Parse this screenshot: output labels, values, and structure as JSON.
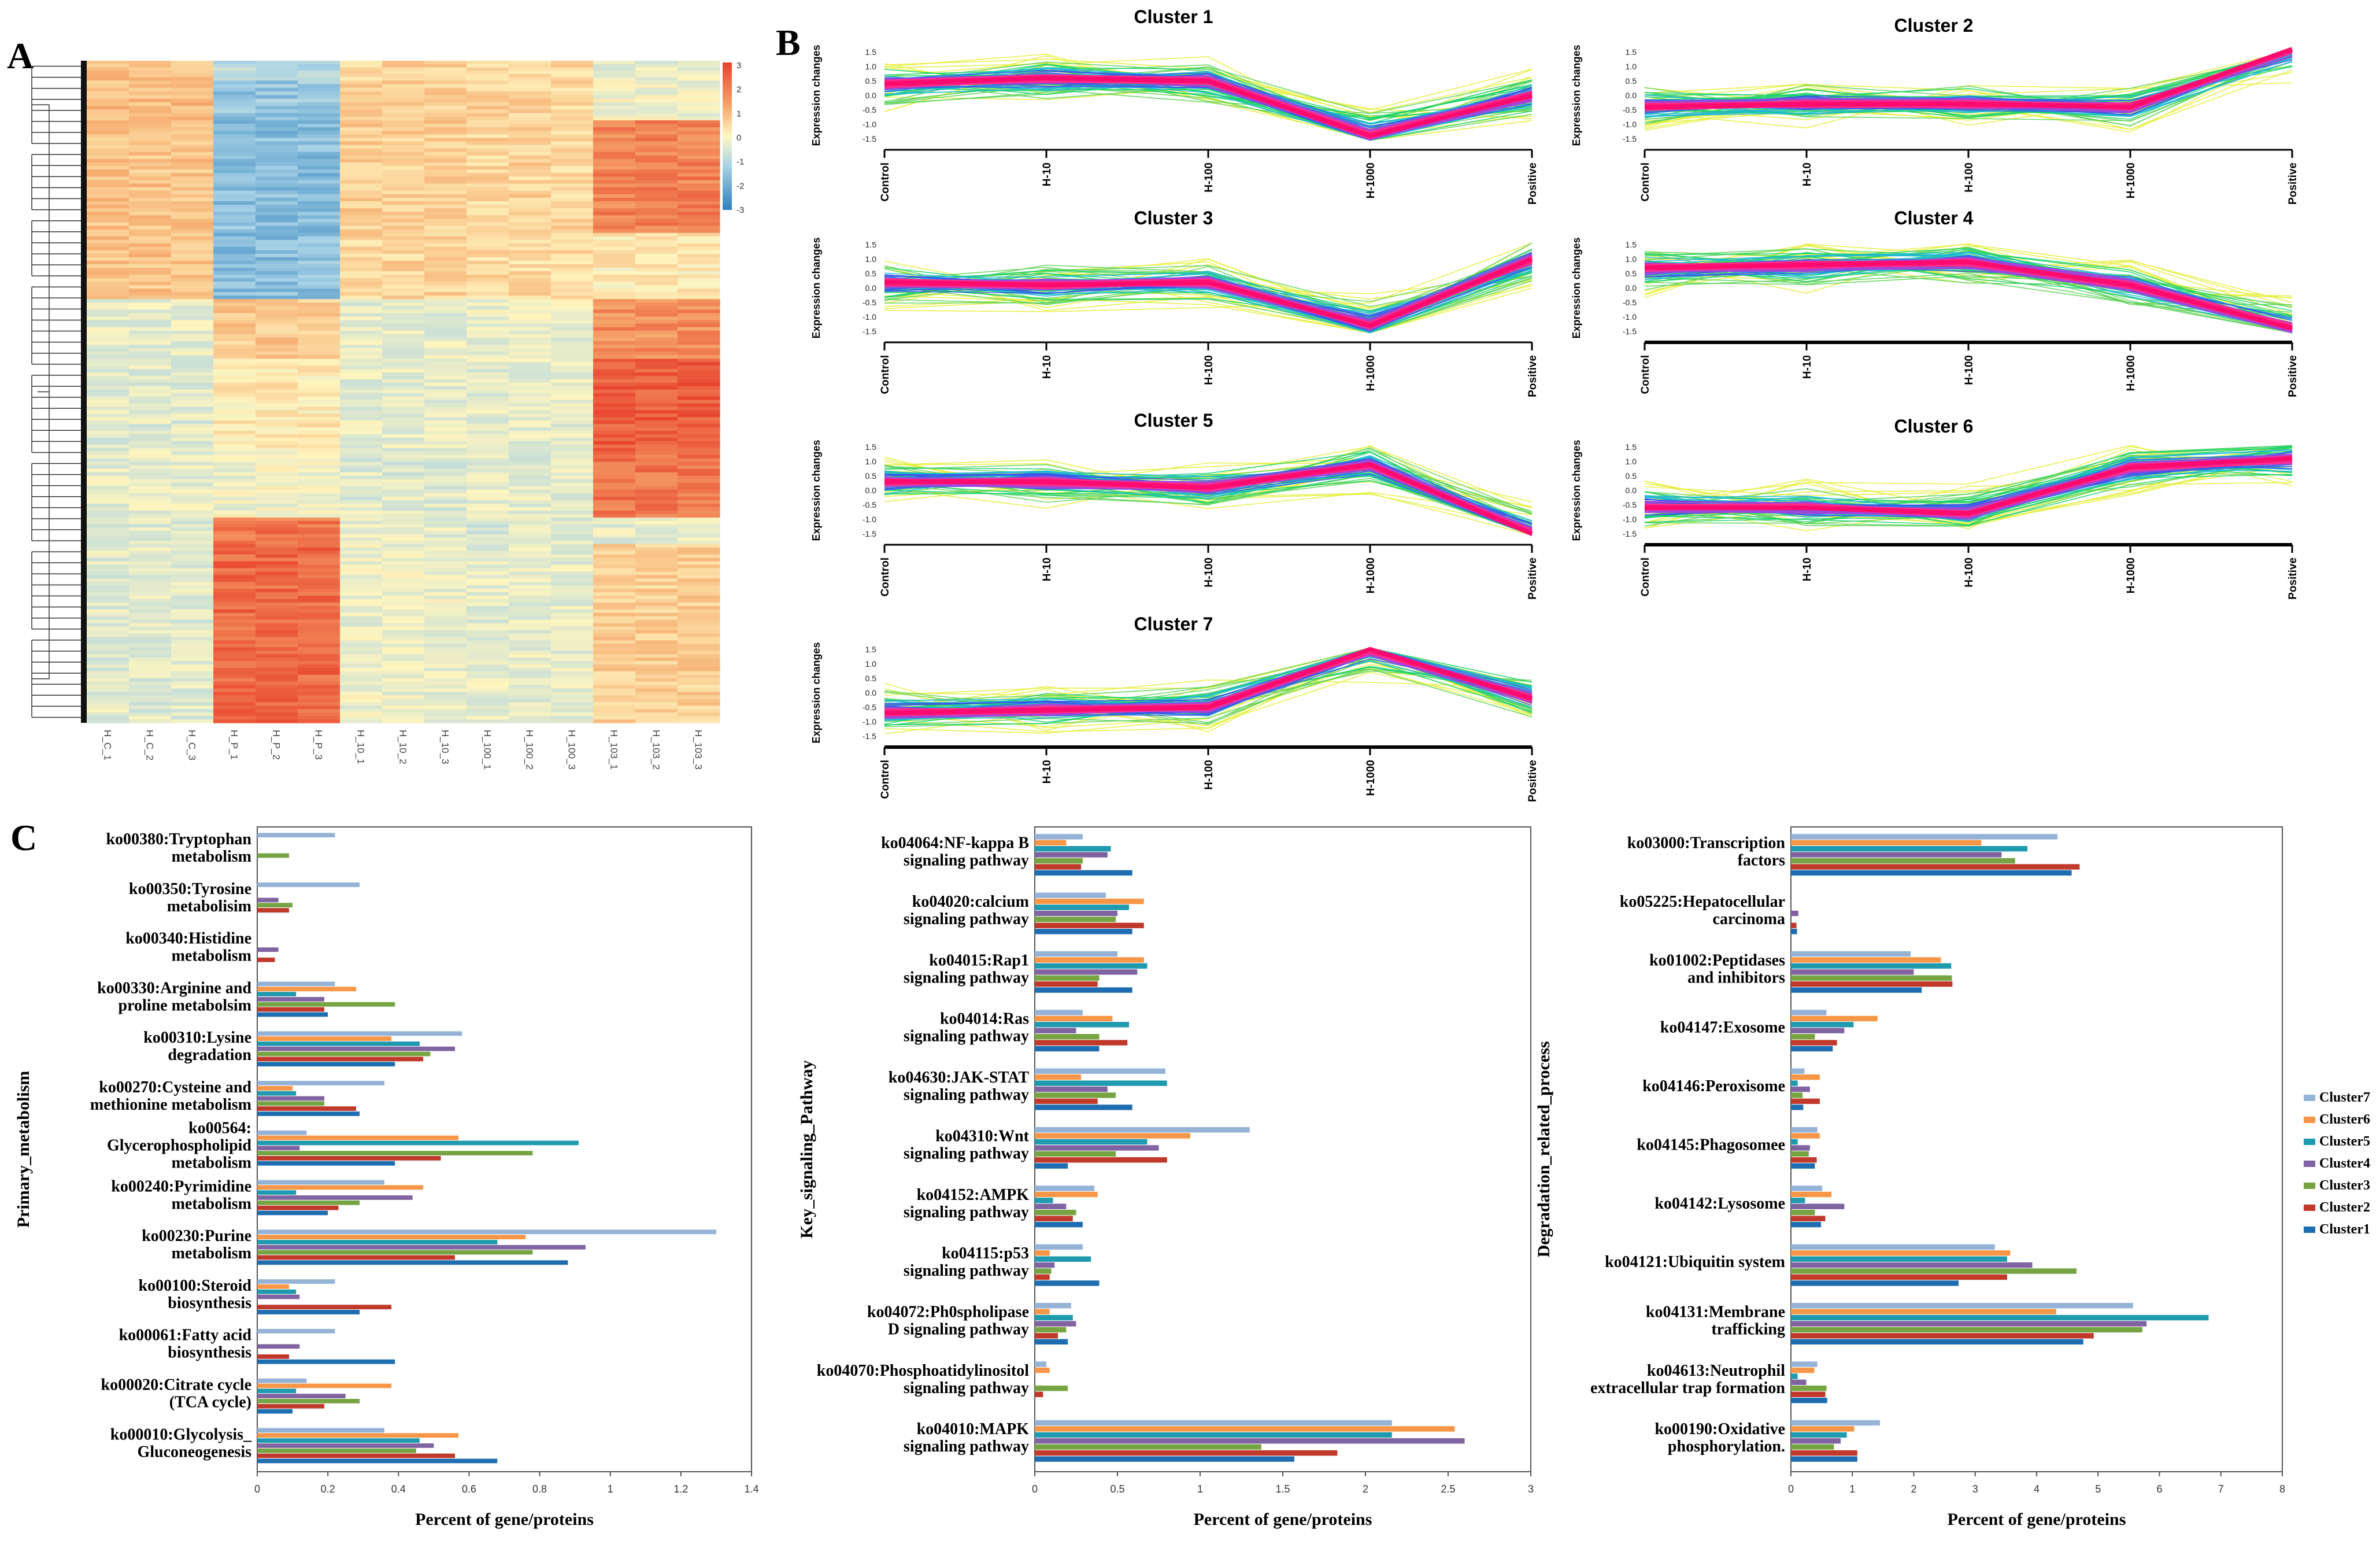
{
  "panels": {
    "a": "A",
    "b": "B",
    "c": "C"
  },
  "heatmap": {
    "samples": [
      "H_C_1",
      "H_C_2",
      "H_C_3",
      "H_P_1",
      "H_P_2",
      "H_P_3",
      "H_10_1",
      "H_10_2",
      "H_10_3",
      "H_100_1",
      "H_100_2",
      "H_100_3",
      "H_103_1",
      "H_103_2",
      "H_103_3"
    ],
    "scale_ticks": [
      "3",
      "2",
      "1",
      "0",
      "-1",
      "-2",
      "-3"
    ],
    "colors": {
      "high": "#f0703f",
      "mid": "#fff2b8",
      "low": "#3b8cc4"
    }
  },
  "chart_data": [
    {
      "type": "line",
      "title": "Cluster 1",
      "ylabel": "Expression changes",
      "x": [
        "Control",
        "H-10",
        "H-100",
        "H-1000",
        "Positive"
      ],
      "yticks": [
        "1.5",
        "1.0",
        "0.5",
        "0.0",
        "-0.5",
        "-1.0",
        "-1.5"
      ],
      "ylim": [
        -1.6,
        1.6
      ],
      "series": [
        {
          "values": [
            0.4,
            0.6,
            0.5,
            -1.4,
            0.0
          ]
        }
      ]
    },
    {
      "type": "line",
      "title": "Cluster 2",
      "ylabel": "Expression changes",
      "x": [
        "Control",
        "H-10",
        "H-100",
        "H-1000",
        "Positive"
      ],
      "yticks": [
        "1.5",
        "1.0",
        "0.5",
        "0.0",
        "-0.5",
        "-1.0",
        "-1.5"
      ],
      "ylim": [
        -1.6,
        1.6
      ],
      "series": [
        {
          "values": [
            -0.4,
            -0.3,
            -0.3,
            -0.4,
            1.6
          ]
        }
      ]
    },
    {
      "type": "line",
      "title": "Cluster 3",
      "ylabel": "Expression changes",
      "x": [
        "Control",
        "H-10",
        "H-100",
        "H-1000",
        "Positive"
      ],
      "yticks": [
        "1.5",
        "1.0",
        "0.5",
        "0.0",
        "-0.5",
        "-1.0",
        "-1.5"
      ],
      "ylim": [
        -1.6,
        1.6
      ],
      "series": [
        {
          "values": [
            0.2,
            0.1,
            0.2,
            -1.3,
            1.0
          ]
        }
      ]
    },
    {
      "type": "line",
      "title": "Cluster 4",
      "ylabel": "Expression changes",
      "x": [
        "Control",
        "H-10",
        "H-100",
        "H-1000",
        "Positive"
      ],
      "yticks": [
        "1.5",
        "1.0",
        "0.5",
        "0.0",
        "-0.5",
        "-1.0",
        "-1.5"
      ],
      "ylim": [
        -1.6,
        1.6
      ],
      "series": [
        {
          "values": [
            0.7,
            0.8,
            0.9,
            0.1,
            -1.4
          ]
        }
      ]
    },
    {
      "type": "line",
      "title": "Cluster 5",
      "ylabel": "Expression changes",
      "x": [
        "Control",
        "H-10",
        "H-100",
        "H-1000",
        "Positive"
      ],
      "yticks": [
        "1.5",
        "1.0",
        "0.5",
        "0.0",
        "-0.5",
        "-1.0",
        "-1.5"
      ],
      "ylim": [
        -1.6,
        1.6
      ],
      "series": [
        {
          "values": [
            0.3,
            0.3,
            0.1,
            0.9,
            -1.5
          ]
        }
      ]
    },
    {
      "type": "line",
      "title": "Cluster 6",
      "ylabel": "Expression changes",
      "x": [
        "Control",
        "H-10",
        "H-100",
        "H-1000",
        "Positive"
      ],
      "yticks": [
        "1.5",
        "1.0",
        "0.5",
        "0.0",
        "-0.5",
        "-1.0",
        "-1.5"
      ],
      "ylim": [
        -1.6,
        1.6
      ],
      "series": [
        {
          "values": [
            -0.6,
            -0.6,
            -0.8,
            0.8,
            1.1
          ]
        }
      ]
    },
    {
      "type": "line",
      "title": "Cluster 7",
      "ylabel": "Expression changes",
      "x": [
        "Control",
        "H-10",
        "H-100",
        "H-1000",
        "Positive"
      ],
      "yticks": [
        "1.5",
        "1.0",
        "0.5",
        "0.0",
        "-0.5",
        "-1.0",
        "-1.5"
      ],
      "ylim": [
        -1.6,
        1.6
      ],
      "series": [
        {
          "values": [
            -0.7,
            -0.6,
            -0.5,
            1.5,
            -0.2
          ]
        }
      ]
    },
    {
      "type": "bar",
      "orientation": "horizontal",
      "ylabel": "Primary_metabolism",
      "xlabel": "Percent of gene/proteins",
      "xlim": [
        0,
        1.4
      ],
      "xticks": [
        "0",
        "0.2",
        "0.4",
        "0.6",
        "0.8",
        "1",
        "1.2",
        "1.4"
      ],
      "categories": [
        [
          "ko00380:Tryptophan",
          "metabolism"
        ],
        [
          "ko00350:Tyrosine",
          "metabolisim"
        ],
        [
          "ko00340:Histidine",
          "metabolism"
        ],
        [
          "ko00330:Arginine and",
          "proline metabolsim"
        ],
        [
          "ko00310:Lysine",
          "degradation"
        ],
        [
          "ko00270:Cysteine and",
          "methionine metabolism"
        ],
        [
          "ko00564:",
          "Glycerophospholipid",
          "metabolism"
        ],
        [
          "ko00240:Pyrimidine",
          "metabolism"
        ],
        [
          "ko00230:Purine",
          "metabolism"
        ],
        [
          "ko00100:Steroid",
          "biosynthesis"
        ],
        [
          "ko00061:Fatty acid",
          "biosynthesis"
        ],
        [
          "ko00020:Citrate cycle",
          "(TCA cycle)"
        ],
        [
          "ko00010:Glycolysis_",
          "Gluconeogenesis"
        ]
      ],
      "series": [
        {
          "name": "Cluster7",
          "values": [
            0.22,
            0.29,
            0.0,
            0.22,
            0.58,
            0.36,
            0.14,
            0.36,
            1.3,
            0.22,
            0.22,
            0.14,
            0.36
          ]
        },
        {
          "name": "Cluster6",
          "values": [
            0.0,
            0.0,
            0.0,
            0.28,
            0.38,
            0.1,
            0.57,
            0.47,
            0.76,
            0.09,
            0.0,
            0.38,
            0.57
          ]
        },
        {
          "name": "Cluster5",
          "values": [
            0.0,
            0.0,
            0.0,
            0.11,
            0.46,
            0.11,
            0.91,
            0.11,
            0.68,
            0.11,
            0.0,
            0.11,
            0.46
          ]
        },
        {
          "name": "Cluster4",
          "values": [
            0.0,
            0.06,
            0.06,
            0.19,
            0.56,
            0.19,
            0.12,
            0.44,
            0.93,
            0.12,
            0.12,
            0.25,
            0.5
          ]
        },
        {
          "name": "Cluster3",
          "values": [
            0.09,
            0.1,
            0.0,
            0.39,
            0.49,
            0.19,
            0.78,
            0.29,
            0.78,
            0.0,
            0.0,
            0.29,
            0.45
          ]
        },
        {
          "name": "Cluster2",
          "values": [
            0.0,
            0.09,
            0.05,
            0.19,
            0.47,
            0.28,
            0.52,
            0.23,
            0.56,
            0.38,
            0.09,
            0.19,
            0.56
          ]
        },
        {
          "name": "Cluster1",
          "values": [
            0.0,
            0.0,
            0.0,
            0.2,
            0.39,
            0.29,
            0.39,
            0.2,
            0.88,
            0.29,
            0.39,
            0.1,
            0.68
          ]
        }
      ]
    },
    {
      "type": "bar",
      "orientation": "horizontal",
      "ylabel": "Key_signaling_Pathway",
      "xlabel": "Percent of gene/proteins",
      "xlim": [
        0,
        3
      ],
      "xticks": [
        "0",
        "0.5",
        "1",
        "1.5",
        "2",
        "2.5",
        "3"
      ],
      "categories": [
        [
          "ko04064:NF-kappa B",
          "signaling pathway"
        ],
        [
          "ko04020:calcium",
          "signaling pathway"
        ],
        [
          "ko04015:Rap1",
          "signaling pathway"
        ],
        [
          "ko04014:Ras",
          "signaling pathway"
        ],
        [
          "ko04630:JAK-STAT",
          "signaling pathway"
        ],
        [
          "ko04310:Wnt",
          "signaling pathway"
        ],
        [
          "ko04152:AMPK",
          "signaling pathway"
        ],
        [
          "ko04115:p53",
          "signaling pathway"
        ],
        [
          "ko04072:Ph0spholipase",
          "D signaling pathway"
        ],
        [
          "ko04070:Phosphoatidylinositol",
          "signaling pathway"
        ],
        [
          "ko04010:MAPK",
          "signaling pathway"
        ]
      ],
      "series": [
        {
          "name": "Cluster7",
          "values": [
            0.29,
            0.43,
            0.5,
            0.29,
            0.79,
            1.3,
            0.36,
            0.29,
            0.22,
            0.07,
            2.16
          ]
        },
        {
          "name": "Cluster6",
          "values": [
            0.19,
            0.66,
            0.66,
            0.47,
            0.28,
            0.94,
            0.38,
            0.09,
            0.09,
            0.09,
            2.54
          ]
        },
        {
          "name": "Cluster5",
          "values": [
            0.46,
            0.57,
            0.68,
            0.57,
            0.8,
            0.68,
            0.11,
            0.34,
            0.23,
            0.0,
            2.16
          ]
        },
        {
          "name": "Cluster4",
          "values": [
            0.44,
            0.5,
            0.62,
            0.25,
            0.44,
            0.75,
            0.19,
            0.12,
            0.25,
            0.0,
            2.6
          ]
        },
        {
          "name": "Cluster3",
          "values": [
            0.29,
            0.49,
            0.39,
            0.39,
            0.49,
            0.49,
            0.25,
            0.1,
            0.19,
            0.2,
            1.37
          ]
        },
        {
          "name": "Cluster2",
          "values": [
            0.28,
            0.66,
            0.38,
            0.56,
            0.38,
            0.8,
            0.23,
            0.09,
            0.14,
            0.05,
            1.83
          ]
        },
        {
          "name": "Cluster1",
          "values": [
            0.59,
            0.59,
            0.59,
            0.39,
            0.59,
            0.2,
            0.29,
            0.39,
            0.2,
            0.0,
            1.57
          ]
        }
      ]
    },
    {
      "type": "bar",
      "orientation": "horizontal",
      "ylabel": "Degradation_related_process",
      "xlabel": "Percent of gene/proteins",
      "xlim": [
        0,
        8
      ],
      "xticks": [
        "0",
        "1",
        "2",
        "3",
        "4",
        "5",
        "6",
        "7",
        "8"
      ],
      "categories": [
        [
          "ko03000:Transcription",
          "factors"
        ],
        [
          "ko05225:Hepatocellular",
          "carcinoma"
        ],
        [
          "ko01002:Peptidases",
          "and inhibitors"
        ],
        [
          "ko04147:Exosome"
        ],
        [
          "ko04146:Peroxisome"
        ],
        [
          "ko04145:Phagosomee"
        ],
        [
          "ko04142:Lysosome"
        ],
        [
          "ko04121:Ubiquitin system"
        ],
        [
          "ko04131:Membrane",
          "trafficking"
        ],
        [
          "ko04613:Neutrophil",
          "extracellular trap formation"
        ],
        [
          "ko00190:Oxidative",
          "phosphorylation."
        ]
      ],
      "series": [
        {
          "name": "Cluster7",
          "values": [
            4.34,
            0.0,
            1.95,
            0.58,
            0.22,
            0.43,
            0.51,
            3.32,
            5.57,
            0.43,
            1.45
          ]
        },
        {
          "name": "Cluster6",
          "values": [
            3.1,
            0.0,
            2.44,
            1.41,
            0.47,
            0.47,
            0.66,
            3.57,
            4.32,
            0.38,
            1.03
          ]
        },
        {
          "name": "Cluster5",
          "values": [
            3.85,
            0.0,
            2.61,
            1.02,
            0.11,
            0.11,
            0.23,
            3.52,
            6.8,
            0.11,
            0.91
          ]
        },
        {
          "name": "Cluster4",
          "values": [
            3.43,
            0.12,
            2.0,
            0.87,
            0.31,
            0.31,
            0.87,
            3.93,
            5.79,
            0.25,
            0.81
          ]
        },
        {
          "name": "Cluster3",
          "values": [
            3.65,
            0.0,
            2.62,
            0.39,
            0.19,
            0.29,
            0.39,
            4.65,
            5.72,
            0.58,
            0.7
          ]
        },
        {
          "name": "Cluster2",
          "values": [
            4.7,
            0.09,
            2.63,
            0.75,
            0.47,
            0.42,
            0.56,
            3.52,
            4.93,
            0.56,
            1.08
          ]
        },
        {
          "name": "Cluster1",
          "values": [
            4.57,
            0.1,
            2.13,
            0.68,
            0.2,
            0.39,
            0.49,
            2.73,
            4.76,
            0.59,
            1.08
          ]
        }
      ]
    }
  ],
  "legend": {
    "items": [
      "Cluster7",
      "Cluster6",
      "Cluster5",
      "Cluster4",
      "Cluster3",
      "Cluster2",
      "Cluster1"
    ],
    "colors": [
      "#95b3d7",
      "#f79646",
      "#1f9aaf",
      "#8064a2",
      "#77a443",
      "#c0392b",
      "#1f6db1"
    ]
  }
}
